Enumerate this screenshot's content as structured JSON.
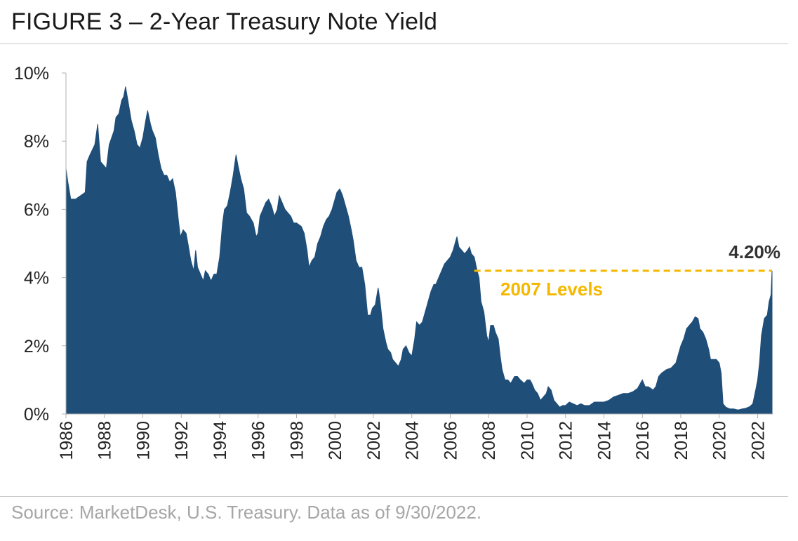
{
  "title": "FIGURE 3 – 2-Year Treasury Note Yield",
  "source": "Source: MarketDesk, U.S. Treasury. Data as of 9/30/2022.",
  "colors": {
    "area": "#1f4e79",
    "annotation": "#f5b800",
    "text": "#222222",
    "source_text": "#a6a6a6",
    "callout_text": "#333333"
  },
  "chart_data": {
    "type": "area",
    "title": "FIGURE 3 – 2-Year Treasury Note Yield",
    "xlabel": "",
    "ylabel": "",
    "xlim": [
      1986.0,
      2022.75
    ],
    "ylim": [
      0,
      10
    ],
    "grid": false,
    "legend": "none",
    "x_ticks": [
      "1986",
      "1988",
      "1990",
      "1992",
      "1994",
      "1996",
      "1998",
      "2000",
      "2002",
      "2004",
      "2006",
      "2008",
      "2010",
      "2012",
      "2014",
      "2016",
      "2018",
      "2020",
      "2022"
    ],
    "y_ticks": [
      "0%",
      "2%",
      "4%",
      "6%",
      "8%",
      "10%"
    ],
    "series": [
      {
        "values": [
          [
            1986.0,
            7.2
          ],
          [
            1986.1,
            6.8
          ],
          [
            1986.25,
            6.3
          ],
          [
            1986.5,
            6.3
          ],
          [
            1986.75,
            6.4
          ],
          [
            1987.0,
            6.5
          ],
          [
            1987.1,
            7.4
          ],
          [
            1987.25,
            7.6
          ],
          [
            1987.5,
            7.9
          ],
          [
            1987.65,
            8.5
          ],
          [
            1987.8,
            7.4
          ],
          [
            1987.95,
            7.3
          ],
          [
            1988.1,
            7.2
          ],
          [
            1988.25,
            7.9
          ],
          [
            1988.5,
            8.3
          ],
          [
            1988.6,
            8.7
          ],
          [
            1988.75,
            8.8
          ],
          [
            1988.9,
            9.2
          ],
          [
            1989.0,
            9.3
          ],
          [
            1989.1,
            9.6
          ],
          [
            1989.25,
            9.1
          ],
          [
            1989.4,
            8.6
          ],
          [
            1989.55,
            8.3
          ],
          [
            1989.7,
            7.9
          ],
          [
            1989.85,
            7.8
          ],
          [
            1990.0,
            8.1
          ],
          [
            1990.15,
            8.6
          ],
          [
            1990.25,
            8.9
          ],
          [
            1990.4,
            8.5
          ],
          [
            1990.5,
            8.3
          ],
          [
            1990.65,
            8.1
          ],
          [
            1990.8,
            7.6
          ],
          [
            1990.95,
            7.2
          ],
          [
            1991.1,
            7.0
          ],
          [
            1991.25,
            7.0
          ],
          [
            1991.4,
            6.8
          ],
          [
            1991.55,
            6.9
          ],
          [
            1991.7,
            6.5
          ],
          [
            1991.85,
            5.7
          ],
          [
            1991.95,
            5.2
          ],
          [
            1992.1,
            5.4
          ],
          [
            1992.25,
            5.3
          ],
          [
            1992.35,
            5.0
          ],
          [
            1992.5,
            4.5
          ],
          [
            1992.65,
            4.2
          ],
          [
            1992.75,
            4.8
          ],
          [
            1992.85,
            4.3
          ],
          [
            1993.0,
            4.1
          ],
          [
            1993.15,
            3.9
          ],
          [
            1993.25,
            4.2
          ],
          [
            1993.4,
            4.1
          ],
          [
            1993.55,
            3.9
          ],
          [
            1993.7,
            4.1
          ],
          [
            1993.85,
            4.1
          ],
          [
            1994.0,
            4.6
          ],
          [
            1994.15,
            5.6
          ],
          [
            1994.25,
            6.0
          ],
          [
            1994.4,
            6.1
          ],
          [
            1994.55,
            6.5
          ],
          [
            1994.7,
            7.0
          ],
          [
            1994.85,
            7.6
          ],
          [
            1994.95,
            7.3
          ],
          [
            1995.1,
            6.9
          ],
          [
            1995.25,
            6.6
          ],
          [
            1995.4,
            5.9
          ],
          [
            1995.55,
            5.8
          ],
          [
            1995.75,
            5.6
          ],
          [
            1995.9,
            5.2
          ],
          [
            1996.0,
            5.3
          ],
          [
            1996.1,
            5.8
          ],
          [
            1996.25,
            6.0
          ],
          [
            1996.4,
            6.2
          ],
          [
            1996.55,
            6.3
          ],
          [
            1996.7,
            6.1
          ],
          [
            1996.85,
            5.8
          ],
          [
            1997.0,
            6.0
          ],
          [
            1997.1,
            6.4
          ],
          [
            1997.25,
            6.2
          ],
          [
            1997.4,
            6.0
          ],
          [
            1997.55,
            5.9
          ],
          [
            1997.7,
            5.8
          ],
          [
            1997.85,
            5.6
          ],
          [
            1998.0,
            5.6
          ],
          [
            1998.25,
            5.5
          ],
          [
            1998.4,
            5.3
          ],
          [
            1998.55,
            4.8
          ],
          [
            1998.65,
            4.3
          ],
          [
            1998.8,
            4.5
          ],
          [
            1998.95,
            4.6
          ],
          [
            1999.1,
            5.0
          ],
          [
            1999.25,
            5.2
          ],
          [
            1999.4,
            5.5
          ],
          [
            1999.55,
            5.7
          ],
          [
            1999.7,
            5.8
          ],
          [
            1999.85,
            6.0
          ],
          [
            1999.95,
            6.2
          ],
          [
            2000.1,
            6.5
          ],
          [
            2000.25,
            6.6
          ],
          [
            2000.4,
            6.4
          ],
          [
            2000.55,
            6.1
          ],
          [
            2000.7,
            5.8
          ],
          [
            2000.85,
            5.4
          ],
          [
            2000.95,
            5.1
          ],
          [
            2001.1,
            4.5
          ],
          [
            2001.25,
            4.3
          ],
          [
            2001.4,
            4.3
          ],
          [
            2001.55,
            3.8
          ],
          [
            2001.7,
            2.9
          ],
          [
            2001.85,
            2.9
          ],
          [
            2001.95,
            3.1
          ],
          [
            2002.1,
            3.2
          ],
          [
            2002.25,
            3.7
          ],
          [
            2002.35,
            3.3
          ],
          [
            2002.5,
            2.5
          ],
          [
            2002.65,
            2.1
          ],
          [
            2002.75,
            1.9
          ],
          [
            2002.9,
            1.8
          ],
          [
            2003.0,
            1.6
          ],
          [
            2003.15,
            1.5
          ],
          [
            2003.3,
            1.4
          ],
          [
            2003.45,
            1.6
          ],
          [
            2003.55,
            1.9
          ],
          [
            2003.7,
            2.0
          ],
          [
            2003.85,
            1.8
          ],
          [
            2004.0,
            1.7
          ],
          [
            2004.15,
            2.2
          ],
          [
            2004.25,
            2.7
          ],
          [
            2004.4,
            2.6
          ],
          [
            2004.55,
            2.7
          ],
          [
            2004.7,
            3.0
          ],
          [
            2004.85,
            3.3
          ],
          [
            2005.0,
            3.6
          ],
          [
            2005.15,
            3.8
          ],
          [
            2005.25,
            3.8
          ],
          [
            2005.4,
            4.0
          ],
          [
            2005.55,
            4.2
          ],
          [
            2005.7,
            4.4
          ],
          [
            2005.85,
            4.5
          ],
          [
            2006.0,
            4.6
          ],
          [
            2006.15,
            4.8
          ],
          [
            2006.25,
            5.0
          ],
          [
            2006.35,
            5.2
          ],
          [
            2006.45,
            4.9
          ],
          [
            2006.6,
            4.8
          ],
          [
            2006.75,
            4.7
          ],
          [
            2006.9,
            4.8
          ],
          [
            2007.0,
            4.9
          ],
          [
            2007.1,
            4.7
          ],
          [
            2007.25,
            4.6
          ],
          [
            2007.4,
            4.2
          ],
          [
            2007.5,
            4.0
          ],
          [
            2007.6,
            3.3
          ],
          [
            2007.75,
            3.0
          ],
          [
            2007.9,
            2.3
          ],
          [
            2008.0,
            2.1
          ],
          [
            2008.1,
            2.6
          ],
          [
            2008.25,
            2.6
          ],
          [
            2008.35,
            2.4
          ],
          [
            2008.5,
            2.2
          ],
          [
            2008.6,
            1.7
          ],
          [
            2008.7,
            1.3
          ],
          [
            2008.85,
            1.0
          ],
          [
            2009.0,
            1.0
          ],
          [
            2009.15,
            0.9
          ],
          [
            2009.25,
            1.0
          ],
          [
            2009.35,
            1.1
          ],
          [
            2009.5,
            1.1
          ],
          [
            2009.65,
            1.0
          ],
          [
            2009.85,
            0.9
          ],
          [
            2010.0,
            1.0
          ],
          [
            2010.15,
            1.0
          ],
          [
            2010.25,
            0.9
          ],
          [
            2010.4,
            0.7
          ],
          [
            2010.55,
            0.6
          ],
          [
            2010.7,
            0.4
          ],
          [
            2010.85,
            0.5
          ],
          [
            2011.0,
            0.6
          ],
          [
            2011.1,
            0.8
          ],
          [
            2011.25,
            0.7
          ],
          [
            2011.4,
            0.4
          ],
          [
            2011.55,
            0.3
          ],
          [
            2011.7,
            0.2
          ],
          [
            2011.85,
            0.25
          ],
          [
            2012.0,
            0.25
          ],
          [
            2012.2,
            0.35
          ],
          [
            2012.4,
            0.3
          ],
          [
            2012.6,
            0.25
          ],
          [
            2012.8,
            0.3
          ],
          [
            2013.0,
            0.25
          ],
          [
            2013.25,
            0.25
          ],
          [
            2013.5,
            0.35
          ],
          [
            2013.75,
            0.35
          ],
          [
            2014.0,
            0.35
          ],
          [
            2014.25,
            0.4
          ],
          [
            2014.5,
            0.5
          ],
          [
            2014.75,
            0.55
          ],
          [
            2015.0,
            0.6
          ],
          [
            2015.25,
            0.6
          ],
          [
            2015.5,
            0.65
          ],
          [
            2015.75,
            0.75
          ],
          [
            2016.0,
            1.0
          ],
          [
            2016.15,
            0.8
          ],
          [
            2016.3,
            0.8
          ],
          [
            2016.45,
            0.75
          ],
          [
            2016.55,
            0.7
          ],
          [
            2016.7,
            0.8
          ],
          [
            2016.85,
            1.1
          ],
          [
            2017.0,
            1.2
          ],
          [
            2017.25,
            1.3
          ],
          [
            2017.5,
            1.35
          ],
          [
            2017.75,
            1.5
          ],
          [
            2017.9,
            1.8
          ],
          [
            2018.0,
            2.0
          ],
          [
            2018.15,
            2.2
          ],
          [
            2018.3,
            2.5
          ],
          [
            2018.45,
            2.6
          ],
          [
            2018.6,
            2.7
          ],
          [
            2018.75,
            2.85
          ],
          [
            2018.9,
            2.8
          ],
          [
            2019.0,
            2.5
          ],
          [
            2019.15,
            2.4
          ],
          [
            2019.3,
            2.2
          ],
          [
            2019.45,
            1.9
          ],
          [
            2019.55,
            1.6
          ],
          [
            2019.7,
            1.6
          ],
          [
            2019.85,
            1.6
          ],
          [
            2020.0,
            1.5
          ],
          [
            2020.1,
            1.2
          ],
          [
            2020.2,
            0.3
          ],
          [
            2020.35,
            0.2
          ],
          [
            2020.55,
            0.15
          ],
          [
            2020.75,
            0.15
          ],
          [
            2020.9,
            0.13
          ],
          [
            2021.0,
            0.12
          ],
          [
            2021.2,
            0.15
          ],
          [
            2021.4,
            0.17
          ],
          [
            2021.6,
            0.22
          ],
          [
            2021.75,
            0.3
          ],
          [
            2021.9,
            0.7
          ],
          [
            2022.0,
            1.0
          ],
          [
            2022.1,
            1.5
          ],
          [
            2022.2,
            2.3
          ],
          [
            2022.35,
            2.8
          ],
          [
            2022.5,
            2.9
          ],
          [
            2022.6,
            3.3
          ],
          [
            2022.7,
            3.5
          ],
          [
            2022.75,
            4.2
          ]
        ]
      }
    ],
    "annotations": {
      "reference_label": "2007 Levels",
      "reference_value": 4.2,
      "reference_start_x": 2007.25,
      "callout_label": "4.20%"
    }
  }
}
